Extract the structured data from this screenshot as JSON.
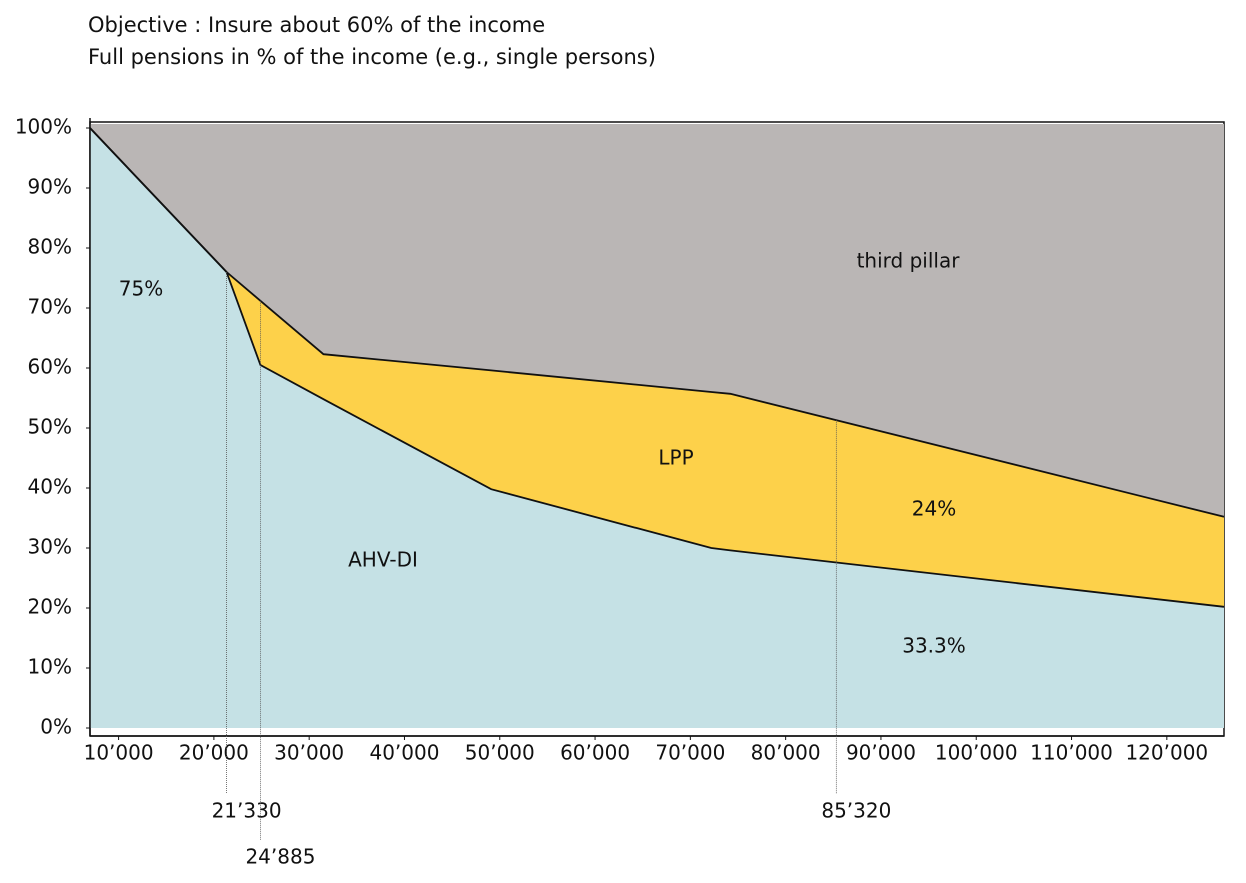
{
  "chart_data": {
    "type": "area",
    "title": "Objective : Insure about 60% of the income",
    "subtitle": "Full pensions in % of the income (e.g., single persons)",
    "x": [
      7000,
      21330,
      24885,
      31500,
      49100,
      72200,
      74200,
      126000
    ],
    "series": [
      {
        "color": "#c5e1e5",
        "values": [
          100,
          76,
          60.5,
          54.8,
          39.8,
          30,
          29.6,
          20.2
        ]
      },
      {
        "color": "#fdd14a",
        "values": [
          100,
          76,
          71.2,
          62.3,
          59.6,
          56,
          55.7,
          35.2
        ]
      }
    ],
    "top_color": "#bab6b5",
    "xlim": [
      7000,
      126000
    ],
    "ylim": [
      0,
      100
    ],
    "xticks": [
      {
        "value": 10000,
        "label": "10’000"
      },
      {
        "value": 20000,
        "label": "20’000"
      },
      {
        "value": 30000,
        "label": "30’000"
      },
      {
        "value": 40000,
        "label": "40’000"
      },
      {
        "value": 50000,
        "label": "50’000"
      },
      {
        "value": 60000,
        "label": "60’000"
      },
      {
        "value": 70000,
        "label": "70’000"
      },
      {
        "value": 80000,
        "label": "80’000"
      },
      {
        "value": 90000,
        "label": "90’000"
      },
      {
        "value": 100000,
        "label": "100’000"
      },
      {
        "value": 110000,
        "label": "110’000"
      },
      {
        "value": 120000,
        "label": "120’000"
      }
    ],
    "yticks": [
      {
        "value": 0,
        "label": "0%"
      },
      {
        "value": 10,
        "label": "10%"
      },
      {
        "value": 20,
        "label": "20%"
      },
      {
        "value": 30,
        "label": "30%"
      },
      {
        "value": 40,
        "label": "40%"
      },
      {
        "value": 50,
        "label": "50%"
      },
      {
        "value": 60,
        "label": "60%"
      },
      {
        "value": 70,
        "label": "70%"
      },
      {
        "value": 80,
        "label": "80%"
      },
      {
        "value": 90,
        "label": "90%"
      },
      {
        "value": 100,
        "label": "100%"
      }
    ],
    "markers": [
      {
        "value": 21330,
        "label": "21’330"
      },
      {
        "value": 24885,
        "label": "24’885"
      },
      {
        "value": 85320,
        "label": "85’320"
      }
    ],
    "annotations": [
      "third pillar",
      "LPP",
      "AHV-DI",
      "75%",
      "24%",
      "33.3%"
    ]
  }
}
